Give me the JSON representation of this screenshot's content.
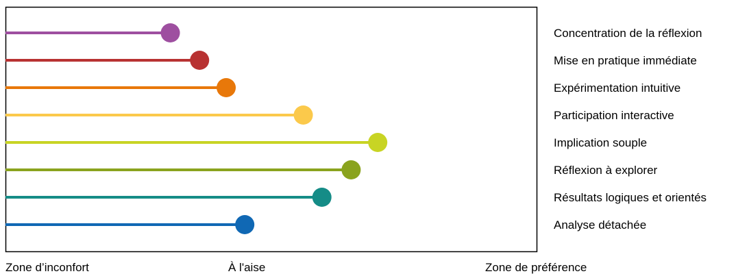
{
  "chart_data": {
    "type": "lollipop",
    "orientation": "horizontal",
    "xlim": [
      0,
      100
    ],
    "grid": false,
    "categories": [
      "Concentration de la réflexion",
      "Mise en pratique immédiate",
      "Expérimentation intuitive",
      "Participation interactive",
      "Implication souple",
      "Réflexion à explorer",
      "Résultats logiques et orientés",
      "Analyse détachée"
    ],
    "values": [
      31,
      36.5,
      41.5,
      56,
      70,
      65,
      59.5,
      45
    ],
    "colors": [
      "#9e4fa0",
      "#b83232",
      "#e8780a",
      "#fbc94b",
      "#c8d424",
      "#8aa31e",
      "#158c87",
      "#1068b4"
    ],
    "x_zone_labels": [
      "Zone d’inconfort",
      "À l'aise",
      "Zone de préférence"
    ],
    "legend_position": "right"
  }
}
